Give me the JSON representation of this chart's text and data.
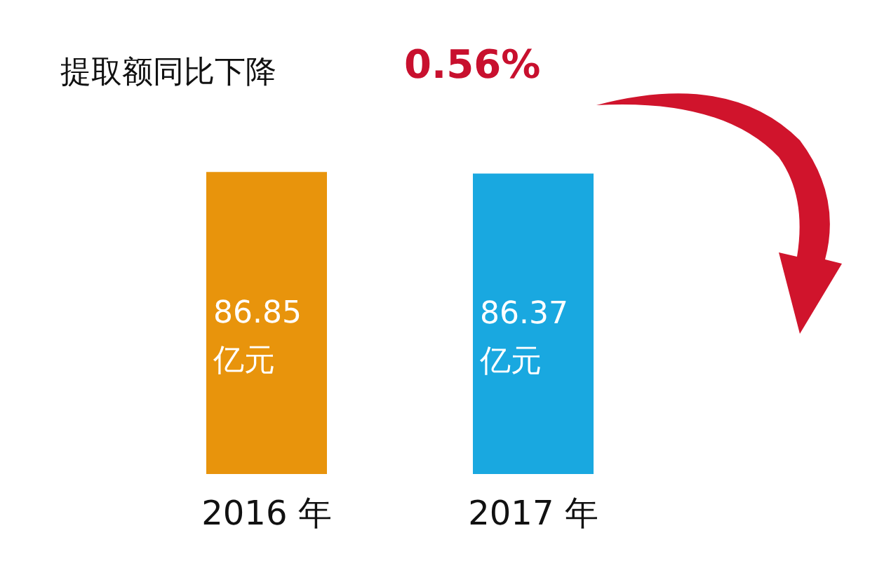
{
  "chart_data": {
    "type": "bar",
    "title": "提取额同比下降",
    "annotations": [
      "0.56%"
    ],
    "categories": [
      "2016 年",
      "2017 年"
    ],
    "values": [
      86.85,
      86.37
    ],
    "colors": [
      "#e8940c",
      "#19a8e0"
    ],
    "value_labels": [
      "86.85\n亿元",
      "86.37\n亿元"
    ]
  }
}
